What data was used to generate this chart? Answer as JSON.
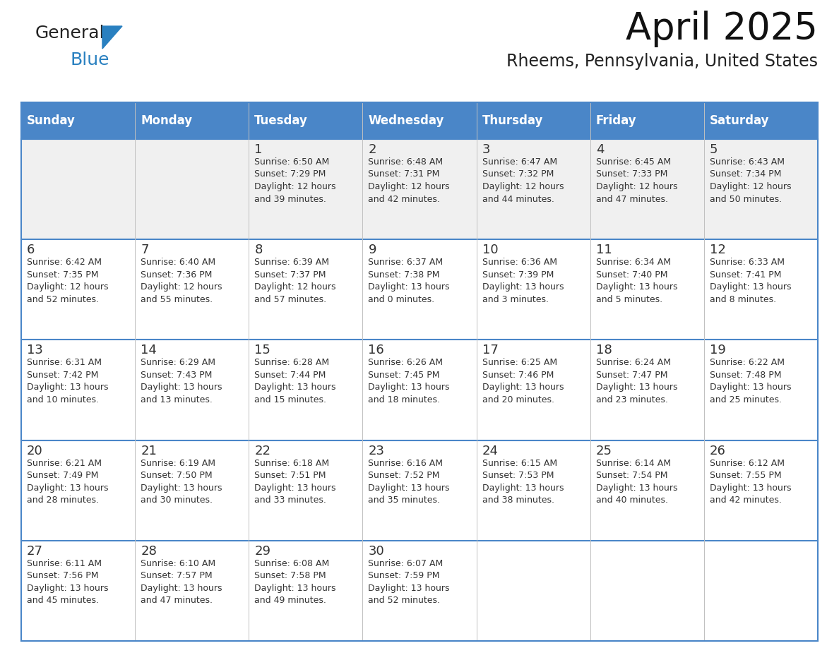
{
  "title": "April 2025",
  "subtitle": "Rheems, Pennsylvania, United States",
  "header_bg_color": "#4a86c8",
  "header_text_color": "#ffffff",
  "row1_bg_color": "#f0f0f0",
  "cell_bg_color": "#ffffff",
  "border_color": "#4a86c8",
  "text_color": "#333333",
  "day_headers": [
    "Sunday",
    "Monday",
    "Tuesday",
    "Wednesday",
    "Thursday",
    "Friday",
    "Saturday"
  ],
  "weeks": [
    [
      {
        "day": "",
        "info": ""
      },
      {
        "day": "",
        "info": ""
      },
      {
        "day": "1",
        "info": "Sunrise: 6:50 AM\nSunset: 7:29 PM\nDaylight: 12 hours\nand 39 minutes."
      },
      {
        "day": "2",
        "info": "Sunrise: 6:48 AM\nSunset: 7:31 PM\nDaylight: 12 hours\nand 42 minutes."
      },
      {
        "day": "3",
        "info": "Sunrise: 6:47 AM\nSunset: 7:32 PM\nDaylight: 12 hours\nand 44 minutes."
      },
      {
        "day": "4",
        "info": "Sunrise: 6:45 AM\nSunset: 7:33 PM\nDaylight: 12 hours\nand 47 minutes."
      },
      {
        "day": "5",
        "info": "Sunrise: 6:43 AM\nSunset: 7:34 PM\nDaylight: 12 hours\nand 50 minutes."
      }
    ],
    [
      {
        "day": "6",
        "info": "Sunrise: 6:42 AM\nSunset: 7:35 PM\nDaylight: 12 hours\nand 52 minutes."
      },
      {
        "day": "7",
        "info": "Sunrise: 6:40 AM\nSunset: 7:36 PM\nDaylight: 12 hours\nand 55 minutes."
      },
      {
        "day": "8",
        "info": "Sunrise: 6:39 AM\nSunset: 7:37 PM\nDaylight: 12 hours\nand 57 minutes."
      },
      {
        "day": "9",
        "info": "Sunrise: 6:37 AM\nSunset: 7:38 PM\nDaylight: 13 hours\nand 0 minutes."
      },
      {
        "day": "10",
        "info": "Sunrise: 6:36 AM\nSunset: 7:39 PM\nDaylight: 13 hours\nand 3 minutes."
      },
      {
        "day": "11",
        "info": "Sunrise: 6:34 AM\nSunset: 7:40 PM\nDaylight: 13 hours\nand 5 minutes."
      },
      {
        "day": "12",
        "info": "Sunrise: 6:33 AM\nSunset: 7:41 PM\nDaylight: 13 hours\nand 8 minutes."
      }
    ],
    [
      {
        "day": "13",
        "info": "Sunrise: 6:31 AM\nSunset: 7:42 PM\nDaylight: 13 hours\nand 10 minutes."
      },
      {
        "day": "14",
        "info": "Sunrise: 6:29 AM\nSunset: 7:43 PM\nDaylight: 13 hours\nand 13 minutes."
      },
      {
        "day": "15",
        "info": "Sunrise: 6:28 AM\nSunset: 7:44 PM\nDaylight: 13 hours\nand 15 minutes."
      },
      {
        "day": "16",
        "info": "Sunrise: 6:26 AM\nSunset: 7:45 PM\nDaylight: 13 hours\nand 18 minutes."
      },
      {
        "day": "17",
        "info": "Sunrise: 6:25 AM\nSunset: 7:46 PM\nDaylight: 13 hours\nand 20 minutes."
      },
      {
        "day": "18",
        "info": "Sunrise: 6:24 AM\nSunset: 7:47 PM\nDaylight: 13 hours\nand 23 minutes."
      },
      {
        "day": "19",
        "info": "Sunrise: 6:22 AM\nSunset: 7:48 PM\nDaylight: 13 hours\nand 25 minutes."
      }
    ],
    [
      {
        "day": "20",
        "info": "Sunrise: 6:21 AM\nSunset: 7:49 PM\nDaylight: 13 hours\nand 28 minutes."
      },
      {
        "day": "21",
        "info": "Sunrise: 6:19 AM\nSunset: 7:50 PM\nDaylight: 13 hours\nand 30 minutes."
      },
      {
        "day": "22",
        "info": "Sunrise: 6:18 AM\nSunset: 7:51 PM\nDaylight: 13 hours\nand 33 minutes."
      },
      {
        "day": "23",
        "info": "Sunrise: 6:16 AM\nSunset: 7:52 PM\nDaylight: 13 hours\nand 35 minutes."
      },
      {
        "day": "24",
        "info": "Sunrise: 6:15 AM\nSunset: 7:53 PM\nDaylight: 13 hours\nand 38 minutes."
      },
      {
        "day": "25",
        "info": "Sunrise: 6:14 AM\nSunset: 7:54 PM\nDaylight: 13 hours\nand 40 minutes."
      },
      {
        "day": "26",
        "info": "Sunrise: 6:12 AM\nSunset: 7:55 PM\nDaylight: 13 hours\nand 42 minutes."
      }
    ],
    [
      {
        "day": "27",
        "info": "Sunrise: 6:11 AM\nSunset: 7:56 PM\nDaylight: 13 hours\nand 45 minutes."
      },
      {
        "day": "28",
        "info": "Sunrise: 6:10 AM\nSunset: 7:57 PM\nDaylight: 13 hours\nand 47 minutes."
      },
      {
        "day": "29",
        "info": "Sunrise: 6:08 AM\nSunset: 7:58 PM\nDaylight: 13 hours\nand 49 minutes."
      },
      {
        "day": "30",
        "info": "Sunrise: 6:07 AM\nSunset: 7:59 PM\nDaylight: 13 hours\nand 52 minutes."
      },
      {
        "day": "",
        "info": ""
      },
      {
        "day": "",
        "info": ""
      },
      {
        "day": "",
        "info": ""
      }
    ]
  ],
  "logo_text1": "General",
  "logo_text2": "Blue",
  "logo_color1": "#222222",
  "logo_color2": "#2980c0",
  "logo_triangle_color": "#2980c0",
  "title_fontsize": 38,
  "subtitle_fontsize": 17,
  "header_fontsize": 12,
  "day_num_fontsize": 13,
  "info_fontsize": 9
}
